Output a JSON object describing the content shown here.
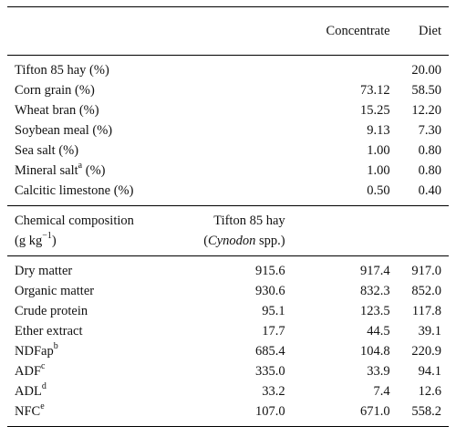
{
  "header": {
    "col_concentrate": "Concentrate",
    "col_diet": "Diet"
  },
  "ingredients": [
    {
      "label": "Tifton 85 hay (%)",
      "sup": "",
      "suffix": "",
      "concentrate": "",
      "diet": "20.00"
    },
    {
      "label": "Corn grain (%)",
      "sup": "",
      "suffix": "",
      "concentrate": "73.12",
      "diet": "58.50"
    },
    {
      "label": "Wheat bran (%)",
      "sup": "",
      "suffix": "",
      "concentrate": "15.25",
      "diet": "12.20"
    },
    {
      "label": "Soybean meal (%)",
      "sup": "",
      "suffix": "",
      "concentrate": "9.13",
      "diet": "7.30"
    },
    {
      "label": "Sea salt (%)",
      "sup": "",
      "suffix": "",
      "concentrate": "1.00",
      "diet": "0.80"
    },
    {
      "label": "Mineral salt",
      "sup": "a",
      "suffix": " (%)",
      "concentrate": "1.00",
      "diet": "0.80"
    },
    {
      "label": "Calcitic limestone (%)",
      "sup": "",
      "suffix": "",
      "concentrate": "0.50",
      "diet": "0.40"
    }
  ],
  "chem_header": {
    "line1": "Chemical composition",
    "line2_pre": "(g kg",
    "line2_sup": "−1",
    "line2_post": ")",
    "hay_line1": "Tifton 85 hay",
    "hay_line2_open": "(",
    "hay_line2_italic": "Cynodon",
    "hay_line2_close": " spp.)"
  },
  "composition": [
    {
      "label": "Dry matter",
      "sup": "",
      "hay": "915.6",
      "concentrate": "917.4",
      "diet": "917.0"
    },
    {
      "label": "Organic matter",
      "sup": "",
      "hay": "930.6",
      "concentrate": "832.3",
      "diet": "852.0"
    },
    {
      "label": "Crude protein",
      "sup": "",
      "hay": "95.1",
      "concentrate": "123.5",
      "diet": "117.8"
    },
    {
      "label": "Ether extract",
      "sup": "",
      "hay": "17.7",
      "concentrate": "44.5",
      "diet": "39.1"
    },
    {
      "label": "NDFap",
      "sup": "b",
      "hay": "685.4",
      "concentrate": "104.8",
      "diet": "220.9"
    },
    {
      "label": "ADF",
      "sup": "c",
      "hay": "335.0",
      "concentrate": "33.9",
      "diet": "94.1"
    },
    {
      "label": "ADL",
      "sup": "d",
      "hay": "33.2",
      "concentrate": "7.4",
      "diet": "12.6"
    },
    {
      "label": "NFC",
      "sup": "e",
      "hay": "107.0",
      "concentrate": "671.0",
      "diet": "558.2"
    }
  ]
}
